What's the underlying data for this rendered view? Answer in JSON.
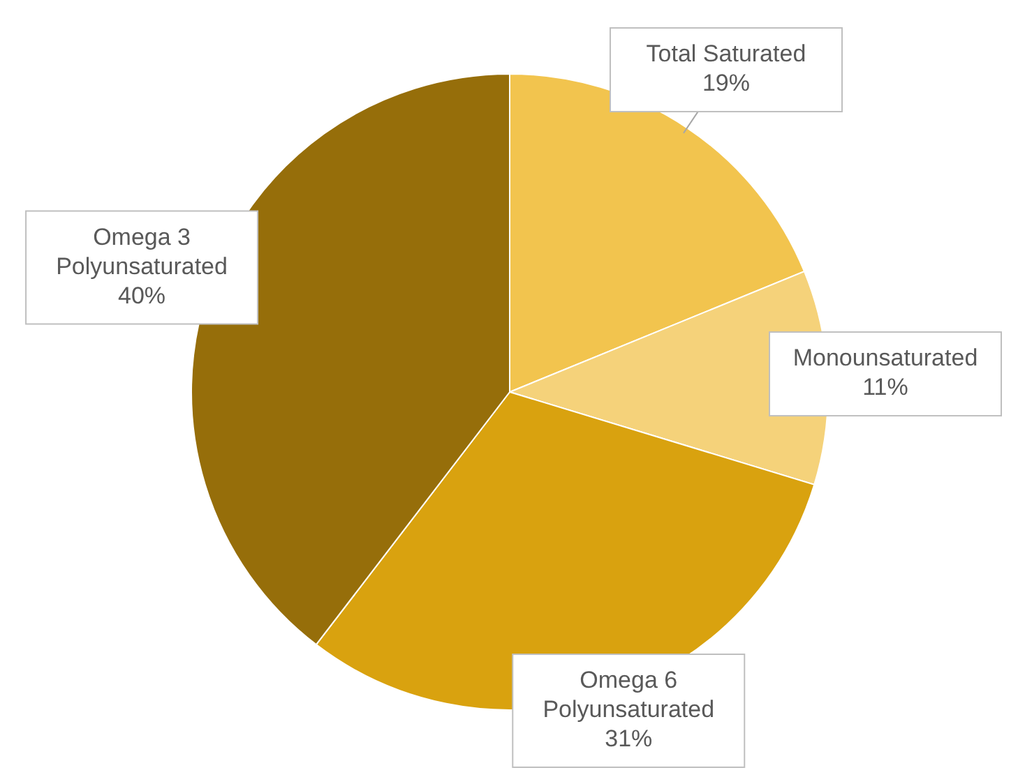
{
  "chart_data": {
    "type": "pie",
    "categories": [
      "Total Saturated",
      "Monounsaturated",
      "Omega 6 Polyunsaturated",
      "Omega 3 Polyunsaturated"
    ],
    "values": [
      19,
      11,
      31,
      40
    ],
    "colors": [
      "#f2c44e",
      "#f5d27a",
      "#d9a20f",
      "#966e0a"
    ],
    "value_labels": [
      "19%",
      "11%",
      "31%",
      "40%"
    ]
  }
}
